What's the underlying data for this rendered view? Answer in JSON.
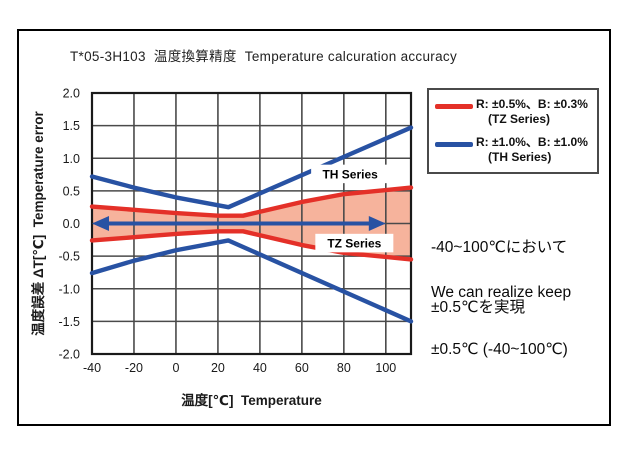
{
  "chart_data": {
    "type": "line",
    "title": "T*05-3H103  温度換算精度  Temperature calcuration accuracy",
    "xlabel": "温度[℃]  Temperature",
    "ylabel": "温度誤差 ΔT[℃]  Temperature error",
    "xlim": [
      -40,
      112
    ],
    "ylim": [
      -2.0,
      2.0
    ],
    "grid": true,
    "xticks": [
      "-40",
      "-20",
      "0",
      "20",
      "40",
      "60",
      "80",
      "100"
    ],
    "yticks": [
      "2.0",
      "1.5",
      "1.0",
      "0.5",
      "0.0",
      "-0.5",
      "-1.0",
      "-1.5",
      "-2.0"
    ],
    "series": [
      {
        "name": "TH Series upper limit",
        "color": "#2852a3",
        "points": [
          [
            -40,
            0.72
          ],
          [
            -20,
            0.55
          ],
          [
            0,
            0.4
          ],
          [
            25,
            0.25
          ],
          [
            112,
            1.47
          ]
        ]
      },
      {
        "name": "TH Series lower limit",
        "color": "#2852a3",
        "points": [
          [
            -40,
            -0.76
          ],
          [
            -20,
            -0.57
          ],
          [
            0,
            -0.41
          ],
          [
            25,
            -0.26
          ],
          [
            112,
            -1.5
          ]
        ]
      },
      {
        "name": "TZ Series upper limit",
        "color": "#e43028",
        "points": [
          [
            -40,
            0.26
          ],
          [
            -20,
            0.21
          ],
          [
            0,
            0.16
          ],
          [
            20,
            0.12
          ],
          [
            32,
            0.12
          ],
          [
            60,
            0.33
          ],
          [
            80,
            0.45
          ],
          [
            112,
            0.55
          ]
        ]
      },
      {
        "name": "TZ Series lower limit",
        "color": "#e43028",
        "points": [
          [
            -40,
            -0.26
          ],
          [
            -20,
            -0.21
          ],
          [
            0,
            -0.16
          ],
          [
            20,
            -0.12
          ],
          [
            32,
            -0.12
          ],
          [
            60,
            -0.33
          ],
          [
            80,
            -0.45
          ],
          [
            112,
            -0.55
          ]
        ]
      }
    ],
    "band_fill": {
      "between": [
        "TZ Series upper limit",
        "TZ Series lower limit"
      ],
      "color": "#f6b39c"
    },
    "range_arrow": {
      "y": 0.0,
      "x_from": -40,
      "x_to": 100,
      "color": "#2852a3"
    },
    "annotations": [
      {
        "label": "TH Series",
        "x": 83,
        "y": 0.76
      },
      {
        "label": "TZ Series",
        "x": 85,
        "y": -0.3
      }
    ],
    "legend_position": "outside-right"
  },
  "legend": {
    "items": [
      {
        "swatch_color": "#e43028",
        "label": "R: ±0.5%、B: ±0.3%",
        "sublabel": "(TZ Series)"
      },
      {
        "swatch_color": "#2852a3",
        "label": "R: ±1.0%、B: ±1.0%",
        "sublabel": "(TH Series)"
      }
    ]
  },
  "side_note": {
    "jp_line1": "-40~100℃において",
    "jp_line2": "±0.5℃を実現",
    "en_line1": "We can realize keep",
    "en_line2": "±0.5℃ (-40~100℃)"
  }
}
